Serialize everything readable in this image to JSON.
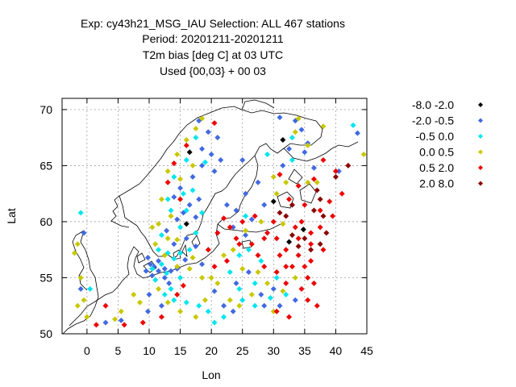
{
  "title_lines": [
    "Exp: cy43h21_MSG_IAU   Selection: ALL    467 stations",
    "Period: 20201211-20201211",
    "T2m bias [deg C] at  03 UTC",
    "Used {00,03} + 00 03"
  ],
  "chart_data": {
    "type": "scatter",
    "xlabel": "Lon",
    "ylabel": "Lat",
    "xlim": [
      -4,
      45
    ],
    "ylim": [
      50,
      71
    ],
    "xticks": [
      0,
      5,
      10,
      15,
      20,
      25,
      30,
      35,
      40,
      45
    ],
    "yticks": [
      50,
      55,
      60,
      65,
      70
    ],
    "grid": true,
    "legend_position": "right",
    "series": [
      {
        "name": "-8.0 -2.0",
        "color": "#000000",
        "points": [
          [
            16.5,
            66.2
          ],
          [
            31.5,
            67.3
          ],
          [
            30.0,
            61.8
          ],
          [
            34.8,
            59.3
          ],
          [
            32.5,
            58.2
          ],
          [
            16.0,
            59.8
          ]
        ]
      },
      {
        "name": "-2.0 -0.5",
        "color": "#4169e1",
        "points": [
          [
            43.5,
            67.9
          ],
          [
            40.5,
            64.5
          ],
          [
            36.5,
            64.8
          ],
          [
            31.0,
            69.3
          ],
          [
            33.5,
            69.0
          ],
          [
            34.5,
            68.2
          ],
          [
            35.5,
            67.0
          ],
          [
            32.5,
            66.5
          ],
          [
            35.0,
            66.2
          ],
          [
            31.5,
            65.0
          ],
          [
            18.0,
            69.0
          ],
          [
            19.5,
            68.0
          ],
          [
            21.0,
            67.5
          ],
          [
            18.5,
            66.5
          ],
          [
            20.0,
            66.0
          ],
          [
            21.5,
            65.5
          ],
          [
            18.5,
            65.0
          ],
          [
            20.5,
            64.5
          ],
          [
            17.0,
            64.0
          ],
          [
            15.0,
            63.0
          ],
          [
            14.0,
            62.2
          ],
          [
            16.5,
            61.5
          ],
          [
            18.0,
            62.0
          ],
          [
            15.5,
            60.8
          ],
          [
            17.5,
            60.4
          ],
          [
            14.5,
            60.2
          ],
          [
            12.8,
            59.2
          ],
          [
            16.0,
            58.5
          ],
          [
            14.0,
            58.0
          ],
          [
            17.5,
            57.8
          ],
          [
            9.8,
            56.8
          ],
          [
            10.2,
            56.2
          ],
          [
            11.5,
            56.5
          ],
          [
            9.5,
            55.6
          ],
          [
            10.5,
            55.2
          ],
          [
            11.5,
            55.6
          ],
          [
            12.5,
            55.8
          ],
          [
            13.5,
            55.6
          ],
          [
            10.8,
            56.0
          ],
          [
            12.5,
            55.0
          ],
          [
            14.5,
            55.8
          ],
          [
            15.8,
            56.6
          ],
          [
            18.5,
            56.2
          ],
          [
            13.2,
            54.5
          ],
          [
            10.0,
            53.5
          ],
          [
            12.0,
            52.5
          ],
          [
            9.8,
            52.0
          ],
          [
            20.5,
            53.8
          ],
          [
            24.0,
            54.5
          ],
          [
            26.0,
            55.5
          ],
          [
            28.0,
            53.5
          ],
          [
            30.0,
            54.0
          ],
          [
            22.0,
            52.5
          ],
          [
            23.5,
            52.0
          ],
          [
            28.5,
            52.5
          ],
          [
            31.0,
            52.5
          ],
          [
            33.5,
            53.0
          ],
          [
            25.5,
            58.8
          ],
          [
            23.5,
            59.5
          ],
          [
            26.5,
            60.2
          ],
          [
            28.5,
            61.5
          ],
          [
            27.5,
            63.5
          ],
          [
            25.5,
            62.5
          ],
          [
            24.0,
            61.0
          ],
          [
            22.5,
            61.5
          ],
          [
            25.0,
            65.5
          ],
          [
            -0.5,
            59.0
          ],
          [
            -1.0,
            54.0
          ],
          [
            3.0,
            51.0
          ],
          [
            5.5,
            51.2
          ]
        ]
      },
      {
        "name": "-0.5 0.0",
        "color": "#00e5ee",
        "points": [
          [
            42.8,
            68.6
          ],
          [
            33.0,
            67.5
          ],
          [
            29.0,
            66.0
          ],
          [
            33.0,
            65.5
          ],
          [
            17.5,
            67.5
          ],
          [
            16.0,
            65.5
          ],
          [
            19.0,
            65.3
          ],
          [
            14.0,
            64.0
          ],
          [
            15.5,
            62.5
          ],
          [
            17.0,
            62.8
          ],
          [
            13.0,
            62.0
          ],
          [
            16.0,
            61.0
          ],
          [
            18.5,
            60.8
          ],
          [
            13.5,
            61.0
          ],
          [
            15.0,
            59.5
          ],
          [
            17.5,
            59.0
          ],
          [
            12.0,
            58.8
          ],
          [
            11.5,
            57.5
          ],
          [
            13.0,
            57.2
          ],
          [
            15.0,
            57.2
          ],
          [
            16.5,
            57.5
          ],
          [
            14.0,
            56.7
          ],
          [
            12.0,
            56.2
          ],
          [
            10.5,
            55.8
          ],
          [
            12.8,
            55.4
          ],
          [
            15.0,
            55.0
          ],
          [
            11.0,
            54.8
          ],
          [
            13.5,
            54.0
          ],
          [
            12.5,
            53.5
          ],
          [
            14.0,
            53.0
          ],
          [
            16.0,
            52.8
          ],
          [
            18.0,
            52.5
          ],
          [
            19.5,
            52.0
          ],
          [
            22.0,
            51.5
          ],
          [
            20.5,
            51.0
          ],
          [
            25.0,
            53.0
          ],
          [
            27.0,
            52.5
          ],
          [
            29.5,
            53.2
          ],
          [
            32.0,
            53.5
          ],
          [
            24.5,
            54.0
          ],
          [
            27.0,
            54.5
          ],
          [
            30.5,
            55.0
          ],
          [
            23.0,
            55.5
          ],
          [
            26.0,
            57.5
          ],
          [
            28.0,
            56.5
          ],
          [
            24.5,
            57.0
          ],
          [
            -1.0,
            60.8
          ],
          [
            0.5,
            54.0
          ],
          [
            25.5,
            60.5
          ]
        ]
      },
      {
        "name": "0.0 0.5",
        "color": "#c8c800",
        "points": [
          [
            34.0,
            69.2
          ],
          [
            38.0,
            68.5
          ],
          [
            35.5,
            66.8
          ],
          [
            44.5,
            66.0
          ],
          [
            33.5,
            68.0
          ],
          [
            32.0,
            63.5
          ],
          [
            35.5,
            63.5
          ],
          [
            30.0,
            64.0
          ],
          [
            30.5,
            62.5
          ],
          [
            37.0,
            63.5
          ],
          [
            17.5,
            68.3
          ],
          [
            16.0,
            67.3
          ],
          [
            14.5,
            66.0
          ],
          [
            17.0,
            65.0
          ],
          [
            13.0,
            64.5
          ],
          [
            15.0,
            63.8
          ],
          [
            12.0,
            62.0
          ],
          [
            13.5,
            60.5
          ],
          [
            11.5,
            59.8
          ],
          [
            10.5,
            59.5
          ],
          [
            13.0,
            58.5
          ],
          [
            11.0,
            58.0
          ],
          [
            14.5,
            58.4
          ],
          [
            17.0,
            56.8
          ],
          [
            12.5,
            57.0
          ],
          [
            14.5,
            56.0
          ],
          [
            16.5,
            55.8
          ],
          [
            18.5,
            55.0
          ],
          [
            11.5,
            54.0
          ],
          [
            13.0,
            52.8
          ],
          [
            15.0,
            52.0
          ],
          [
            17.5,
            51.5
          ],
          [
            19.0,
            53.0
          ],
          [
            21.0,
            54.5
          ],
          [
            23.0,
            53.0
          ],
          [
            24.5,
            52.5
          ],
          [
            26.5,
            53.5
          ],
          [
            29.0,
            54.5
          ],
          [
            31.5,
            53.8
          ],
          [
            27.5,
            55.5
          ],
          [
            25.0,
            55.8
          ],
          [
            23.5,
            57.5
          ],
          [
            22.0,
            57.0
          ],
          [
            25.5,
            59.2
          ],
          [
            20.0,
            55.0
          ],
          [
            8.5,
            52.8
          ],
          [
            7.5,
            53.5
          ],
          [
            5.5,
            52.0
          ],
          [
            4.5,
            51.3
          ],
          [
            -1.5,
            52.5
          ],
          [
            -0.5,
            53.0
          ],
          [
            -1.0,
            55.0
          ],
          [
            -2.0,
            57.2
          ],
          [
            -1.5,
            58.0
          ],
          [
            0.0,
            51.5
          ],
          [
            31.5,
            59.8
          ],
          [
            28.0,
            60.0
          ],
          [
            33.5,
            55.0
          ],
          [
            30.0,
            52.0
          ],
          [
            18.5,
            69.2
          ]
        ]
      },
      {
        "name": "0.5 2.0",
        "color": "#ee0000",
        "points": [
          [
            20.5,
            68.8
          ],
          [
            16.0,
            66.8
          ],
          [
            14.0,
            65.2
          ],
          [
            13.0,
            63.5
          ],
          [
            15.0,
            62.0
          ],
          [
            31.0,
            64.2
          ],
          [
            38.0,
            65.5
          ],
          [
            40.0,
            64.5
          ],
          [
            36.5,
            63.8
          ],
          [
            34.0,
            63.2
          ],
          [
            32.5,
            62.0
          ],
          [
            35.0,
            61.5
          ],
          [
            37.5,
            61.0
          ],
          [
            39.0,
            61.8
          ],
          [
            34.5,
            60.0
          ],
          [
            36.0,
            59.0
          ],
          [
            37.5,
            59.5
          ],
          [
            30.0,
            60.0
          ],
          [
            27.0,
            60.5
          ],
          [
            25.0,
            60.0
          ],
          [
            23.0,
            59.5
          ],
          [
            22.0,
            60.3
          ],
          [
            24.0,
            58.5
          ],
          [
            26.5,
            58.0
          ],
          [
            28.5,
            58.5
          ],
          [
            30.5,
            58.5
          ],
          [
            32.0,
            57.5
          ],
          [
            34.0,
            57.0
          ],
          [
            36.0,
            56.5
          ],
          [
            31.0,
            57.0
          ],
          [
            28.5,
            56.0
          ],
          [
            30.5,
            55.5
          ],
          [
            33.0,
            56.0
          ],
          [
            35.5,
            55.0
          ],
          [
            32.0,
            54.5
          ],
          [
            34.5,
            54.0
          ],
          [
            36.5,
            54.5
          ],
          [
            35.5,
            53.0
          ],
          [
            37.0,
            52.5
          ],
          [
            30.5,
            52.0
          ],
          [
            32.5,
            51.5
          ],
          [
            22.5,
            56.5
          ],
          [
            20.5,
            56.0
          ],
          [
            15.5,
            54.3
          ],
          [
            14.5,
            53.5
          ],
          [
            12.0,
            51.5
          ],
          [
            9.0,
            51.0
          ],
          [
            6.0,
            50.8
          ],
          [
            1.5,
            50.8
          ],
          [
            3.0,
            52.5
          ],
          [
            36.0,
            58.0
          ],
          [
            38.0,
            57.5
          ],
          [
            39.5,
            60.5
          ],
          [
            41.0,
            62.5
          ],
          [
            33.5,
            59.5
          ],
          [
            27.5,
            57.0
          ],
          [
            24.5,
            58.0
          ],
          [
            29.0,
            59.0
          ],
          [
            32.0,
            56.0
          ],
          [
            34.0,
            58.5
          ],
          [
            19.5,
            57.5
          ],
          [
            21.0,
            59.0
          ],
          [
            35.0,
            56.0
          ]
        ]
      },
      {
        "name": "2.0 8.0",
        "color": "#8b0000",
        "points": [
          [
            40.0,
            64.0
          ],
          [
            42.0,
            65.0
          ],
          [
            37.5,
            62.0
          ],
          [
            36.5,
            61.0
          ],
          [
            33.0,
            61.5
          ],
          [
            32.0,
            60.5
          ],
          [
            35.0,
            58.5
          ],
          [
            37.5,
            58.0
          ],
          [
            36.0,
            57.5
          ],
          [
            38.5,
            59.0
          ],
          [
            34.0,
            57.8
          ],
          [
            33.0,
            58.8
          ],
          [
            31.0,
            60.8
          ],
          [
            37.0,
            62.8
          ],
          [
            38.0,
            60.5
          ]
        ]
      }
    ]
  }
}
